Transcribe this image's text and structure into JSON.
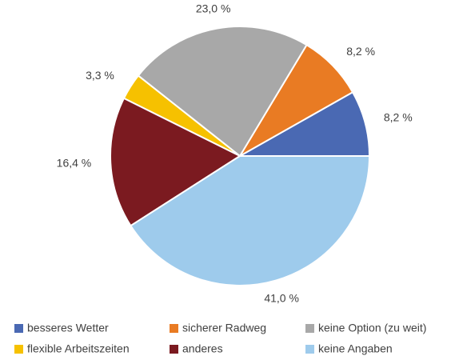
{
  "chart_data": {
    "type": "pie",
    "categories": [
      "besseres Wetter",
      "sicherer Radweg",
      "keine Option (zu weit)",
      "flexible Arbeitszeiten",
      "anderes",
      "keine Angaben"
    ],
    "values": [
      8.2,
      8.2,
      23.0,
      3.3,
      16.4,
      41.0
    ],
    "value_labels": [
      "8,2 %",
      "8,2 %",
      "23,0 %",
      "3,3 %",
      "16,4 %",
      "41,0 %"
    ],
    "colors": [
      "#4a69b3",
      "#e97b23",
      "#a8a8a8",
      "#f6c100",
      "#7b1a20",
      "#9ecbec"
    ],
    "legend": "bottom"
  }
}
